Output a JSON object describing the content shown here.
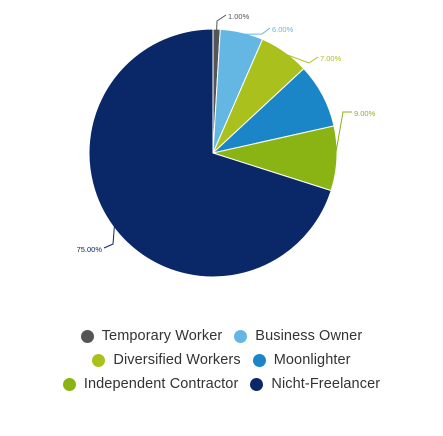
{
  "chart_data": {
    "type": "pie",
    "title": "",
    "start_angle_deg": 0,
    "direction": "clockwise",
    "slices": [
      {
        "name": "Temporary Worker",
        "value": 1.0,
        "label": "1.00%",
        "color": "#555555"
      },
      {
        "name": "Business Owner",
        "value": 6.0,
        "label": "6.00%",
        "color": "#64b7e2"
      },
      {
        "name": "Diversified Workers",
        "value": 7.0,
        "label": "7.00%",
        "color": "#aac11d"
      },
      {
        "name": "Moonlighter",
        "value": 9.0,
        "label": "9.00%",
        "color": "#1a86c8"
      },
      {
        "name": "Independent Contractor",
        "value": 9.0,
        "label": "9.00%",
        "color": "#8ab414"
      },
      {
        "name": "Nicht-Freelancer",
        "value": 75.0,
        "label": "75.00%",
        "color": "#0a2868"
      }
    ],
    "data_labels": [
      "1.00%",
      "6.00%",
      "7.00%",
      "9.00%",
      "75.00%"
    ],
    "legend": {
      "placement": "bottom",
      "rows": [
        [
          "Temporary Worker",
          "Business Owner"
        ],
        [
          "Diversified Workers",
          "Moonlighter"
        ],
        [
          "Independent Contractor",
          "Nicht-Freelancer"
        ]
      ]
    }
  }
}
